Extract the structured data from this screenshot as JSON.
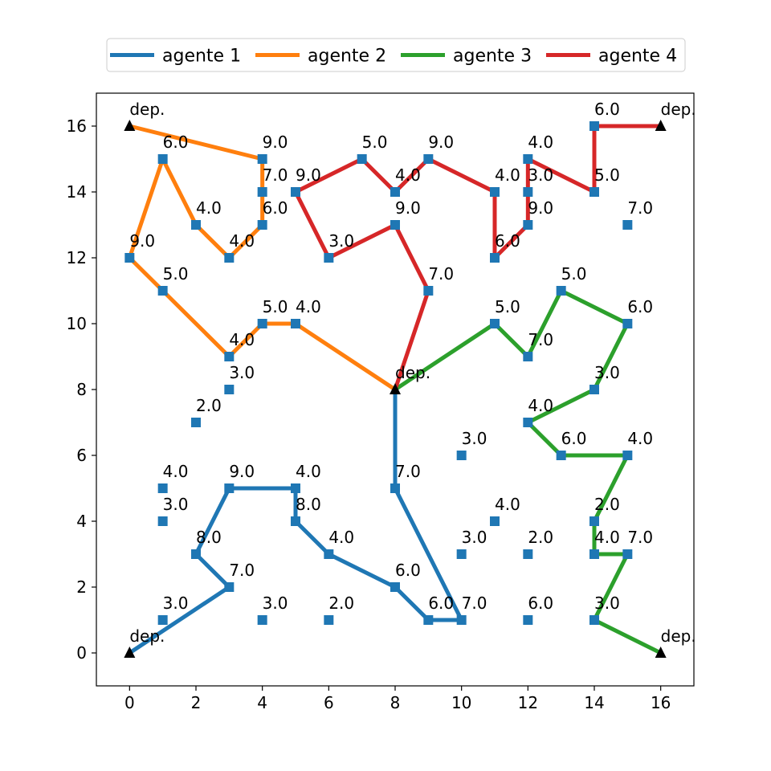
{
  "chart_data": {
    "type": "scatter",
    "xlim": [
      -1,
      17
    ],
    "ylim": [
      -1,
      17
    ],
    "x_ticks": [
      0,
      2,
      4,
      6,
      8,
      10,
      12,
      14,
      16
    ],
    "y_ticks": [
      0,
      2,
      4,
      6,
      8,
      10,
      12,
      14,
      16
    ],
    "grid": false,
    "legend_position": "top-center, outside plot",
    "node_color": "#1f77b4",
    "depot_color": "#000000",
    "depot_label": "dep.",
    "depots": [
      [
        0,
        0
      ],
      [
        0,
        16
      ],
      [
        16,
        16
      ],
      [
        16,
        0
      ],
      [
        8,
        8
      ]
    ],
    "nodes": [
      {
        "x": 1,
        "y": 1,
        "label": "3.0"
      },
      {
        "x": 3,
        "y": 2,
        "label": "7.0"
      },
      {
        "x": 2,
        "y": 3,
        "label": "8.0"
      },
      {
        "x": 1,
        "y": 4,
        "label": "3.0"
      },
      {
        "x": 1,
        "y": 5,
        "label": "4.0"
      },
      {
        "x": 3,
        "y": 5,
        "label": "9.0"
      },
      {
        "x": 5,
        "y": 5,
        "label": "4.0"
      },
      {
        "x": 5,
        "y": 4,
        "label": "8.0"
      },
      {
        "x": 6,
        "y": 3,
        "label": "4.0"
      },
      {
        "x": 4,
        "y": 1,
        "label": "3.0"
      },
      {
        "x": 6,
        "y": 1,
        "label": "2.0"
      },
      {
        "x": 8,
        "y": 2,
        "label": "6.0"
      },
      {
        "x": 9,
        "y": 1,
        "label": "6.0"
      },
      {
        "x": 10,
        "y": 1,
        "label": "7.0"
      },
      {
        "x": 8,
        "y": 5,
        "label": "7.0"
      },
      {
        "x": 10,
        "y": 3,
        "label": "3.0"
      },
      {
        "x": 11,
        "y": 4,
        "label": "4.0"
      },
      {
        "x": 12,
        "y": 3,
        "label": "2.0"
      },
      {
        "x": 12,
        "y": 1,
        "label": "6.0"
      },
      {
        "x": 10,
        "y": 6,
        "label": "3.0"
      },
      {
        "x": 2,
        "y": 7,
        "label": "2.0"
      },
      {
        "x": 3,
        "y": 8,
        "label": "3.0"
      },
      {
        "x": 3,
        "y": 9,
        "label": "4.0"
      },
      {
        "x": 4,
        "y": 10,
        "label": "5.0"
      },
      {
        "x": 5,
        "y": 10,
        "label": "4.0"
      },
      {
        "x": 1,
        "y": 11,
        "label": "5.0"
      },
      {
        "x": 0,
        "y": 12,
        "label": "9.0"
      },
      {
        "x": 1,
        "y": 15,
        "label": "6.0"
      },
      {
        "x": 2,
        "y": 13,
        "label": "4.0"
      },
      {
        "x": 3,
        "y": 12,
        "label": "4.0"
      },
      {
        "x": 4,
        "y": 13,
        "label": "6.0"
      },
      {
        "x": 4,
        "y": 14,
        "label": "7.0"
      },
      {
        "x": 4,
        "y": 15,
        "label": "9.0"
      },
      {
        "x": 5,
        "y": 14,
        "label": "9.0"
      },
      {
        "x": 6,
        "y": 12,
        "label": "3.0"
      },
      {
        "x": 7,
        "y": 15,
        "label": "5.0"
      },
      {
        "x": 8,
        "y": 14,
        "label": "4.0"
      },
      {
        "x": 8,
        "y": 13,
        "label": "9.0"
      },
      {
        "x": 9,
        "y": 15,
        "label": "9.0"
      },
      {
        "x": 9,
        "y": 11,
        "label": "7.0"
      },
      {
        "x": 11,
        "y": 14,
        "label": "4.0"
      },
      {
        "x": 11,
        "y": 12,
        "label": "6.0"
      },
      {
        "x": 12,
        "y": 15,
        "label": "4.0"
      },
      {
        "x": 12,
        "y": 14,
        "label": "3.0"
      },
      {
        "x": 12,
        "y": 13,
        "label": "9.0"
      },
      {
        "x": 14,
        "y": 14,
        "label": "5.0"
      },
      {
        "x": 14,
        "y": 16,
        "label": "6.0"
      },
      {
        "x": 15,
        "y": 13,
        "label": "7.0"
      },
      {
        "x": 11,
        "y": 10,
        "label": "5.0"
      },
      {
        "x": 12,
        "y": 9,
        "label": "7.0"
      },
      {
        "x": 13,
        "y": 11,
        "label": "5.0"
      },
      {
        "x": 15,
        "y": 10,
        "label": "6.0"
      },
      {
        "x": 14,
        "y": 8,
        "label": "3.0"
      },
      {
        "x": 12,
        "y": 7,
        "label": "4.0"
      },
      {
        "x": 13,
        "y": 6,
        "label": "6.0"
      },
      {
        "x": 15,
        "y": 6,
        "label": "4.0"
      },
      {
        "x": 14,
        "y": 4,
        "label": "2.0"
      },
      {
        "x": 14,
        "y": 3,
        "label": "4.0"
      },
      {
        "x": 15,
        "y": 3,
        "label": "7.0"
      },
      {
        "x": 14,
        "y": 1,
        "label": "3.0"
      }
    ],
    "series": [
      {
        "name": "agente 1",
        "color": "#1f77b4",
        "path": [
          [
            0,
            0
          ],
          [
            3,
            2
          ],
          [
            2,
            3
          ],
          [
            3,
            5
          ],
          [
            5,
            5
          ],
          [
            5,
            4
          ],
          [
            6,
            3
          ],
          [
            8,
            2
          ],
          [
            9,
            1
          ],
          [
            10,
            1
          ],
          [
            8,
            5
          ],
          [
            8,
            8
          ]
        ]
      },
      {
        "name": "agente 2",
        "color": "#ff7f0e",
        "path": [
          [
            0,
            16
          ],
          [
            4,
            15
          ],
          [
            4,
            14
          ],
          [
            4,
            13
          ],
          [
            3,
            12
          ],
          [
            2,
            13
          ],
          [
            1,
            15
          ],
          [
            0,
            12
          ],
          [
            1,
            11
          ],
          [
            3,
            9
          ],
          [
            4,
            10
          ],
          [
            5,
            10
          ],
          [
            8,
            8
          ]
        ]
      },
      {
        "name": "agente 3",
        "color": "#2ca02c",
        "path": [
          [
            8,
            8
          ],
          [
            11,
            10
          ],
          [
            12,
            9
          ],
          [
            13,
            11
          ],
          [
            15,
            10
          ],
          [
            14,
            8
          ],
          [
            12,
            7
          ],
          [
            13,
            6
          ],
          [
            15,
            6
          ],
          [
            14,
            4
          ],
          [
            14,
            3
          ],
          [
            15,
            3
          ],
          [
            14,
            1
          ],
          [
            16,
            0
          ]
        ]
      },
      {
        "name": "agente 4",
        "color": "#d62728",
        "path": [
          [
            8,
            8
          ],
          [
            9,
            11
          ],
          [
            8,
            13
          ],
          [
            6,
            12
          ],
          [
            5,
            14
          ],
          [
            7,
            15
          ],
          [
            8,
            14
          ],
          [
            9,
            15
          ],
          [
            11,
            14
          ],
          [
            11,
            12
          ],
          [
            12,
            13
          ],
          [
            12,
            14
          ],
          [
            12,
            15
          ],
          [
            14,
            14
          ],
          [
            14,
            16
          ],
          [
            16,
            16
          ]
        ]
      }
    ]
  }
}
